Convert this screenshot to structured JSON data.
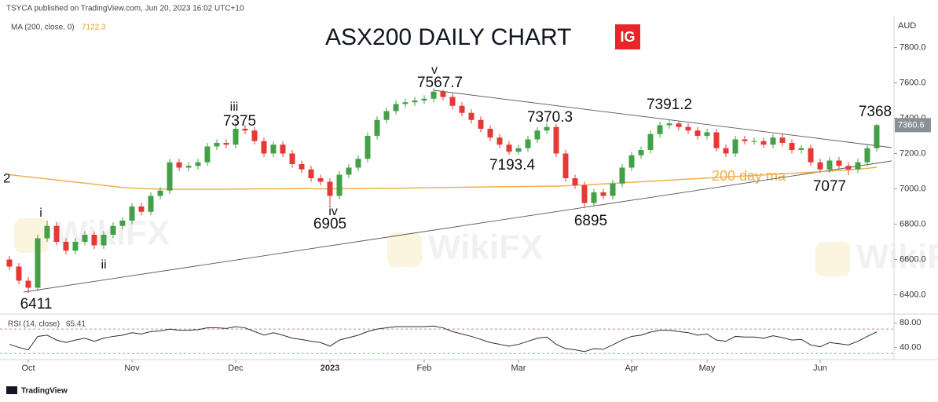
{
  "header": "TSYCA published on TradingView.com, Jun 20, 2023 16:02 UTC+10",
  "footer": "TradingView",
  "chart_data": {
    "type": "candlestick",
    "title": "ASX200 DAILY CHART",
    "logo": "IG",
    "currency": "AUD",
    "edge_label": "2",
    "watermark": "WikiFX",
    "up_color": "#43a047",
    "down_color": "#e53935",
    "categories": [
      null,
      null,
      "Oct",
      null,
      null,
      null,
      null,
      null,
      null,
      null,
      null,
      null,
      null,
      "Nov",
      null,
      null,
      null,
      null,
      null,
      null,
      null,
      null,
      null,
      null,
      "Dec",
      null,
      null,
      null,
      null,
      null,
      null,
      null,
      null,
      null,
      "2023",
      null,
      null,
      null,
      null,
      null,
      null,
      null,
      null,
      null,
      "Feb",
      null,
      null,
      null,
      null,
      null,
      null,
      null,
      null,
      null,
      "Mar",
      null,
      null,
      null,
      null,
      null,
      null,
      null,
      null,
      null,
      null,
      null,
      "Apr",
      null,
      null,
      null,
      null,
      null,
      null,
      null,
      "May",
      null,
      null,
      null,
      null,
      null,
      null,
      null,
      null,
      null,
      null,
      null,
      "Jun",
      null,
      null,
      null,
      null,
      null,
      null
    ],
    "open": [
      6600,
      6560,
      6480,
      6440,
      6720,
      6790,
      6700,
      6650,
      6700,
      6740,
      6680,
      6740,
      6790,
      6820,
      6900,
      6870,
      6960,
      6990,
      7150,
      7120,
      7130,
      7150,
      7240,
      7260,
      7250,
      7340,
      7330,
      7270,
      7200,
      7250,
      7200,
      7140,
      7110,
      7060,
      7040,
      6960,
      7080,
      7120,
      7170,
      7300,
      7390,
      7440,
      7480,
      7490,
      7500,
      7510,
      7550,
      7520,
      7470,
      7430,
      7390,
      7340,
      7290,
      7250,
      7210,
      7230,
      7280,
      7330,
      7350,
      7200,
      7060,
      7020,
      6920,
      6980,
      6960,
      7030,
      7120,
      7190,
      7220,
      7310,
      7360,
      7370,
      7350,
      7330,
      7300,
      7320,
      7230,
      7200,
      7280,
      7270,
      7270,
      7250,
      7290,
      7260,
      7220,
      7230,
      7150,
      7110,
      7160,
      7130,
      7110,
      7150,
      7230
    ],
    "high": [
      6620,
      6580,
      6500,
      6740,
      6820,
      6810,
      6720,
      6720,
      6760,
      6760,
      6760,
      6810,
      6840,
      6920,
      6920,
      6980,
      7010,
      7170,
      7170,
      7150,
      7170,
      7260,
      7280,
      7280,
      7375,
      7360,
      7350,
      7290,
      7270,
      7270,
      7220,
      7160,
      7130,
      7080,
      7060,
      7100,
      7140,
      7190,
      7320,
      7410,
      7460,
      7500,
      7510,
      7520,
      7530,
      7567.7,
      7560,
      7540,
      7490,
      7450,
      7410,
      7360,
      7310,
      7270,
      7250,
      7300,
      7350,
      7370.3,
      7365,
      7220,
      7080,
      7040,
      7000,
      7000,
      7050,
      7140,
      7210,
      7240,
      7330,
      7380,
      7391.2,
      7385,
      7370,
      7350,
      7340,
      7340,
      7250,
      7300,
      7300,
      7290,
      7290,
      7310,
      7310,
      7280,
      7250,
      7250,
      7170,
      7180,
      7180,
      7150,
      7170,
      7250,
      7368
    ],
    "low": [
      6540,
      6460,
      6411,
      6420,
      6700,
      6680,
      6630,
      6630,
      6680,
      6660,
      6660,
      6720,
      6770,
      6800,
      6850,
      6850,
      6940,
      6970,
      7100,
      7100,
      7110,
      7130,
      7220,
      7230,
      7230,
      7310,
      7250,
      7180,
      7180,
      7180,
      7120,
      7090,
      7040,
      7020,
      6905,
      6940,
      7060,
      7100,
      7150,
      7280,
      7370,
      7420,
      7460,
      7470,
      7480,
      7490,
      7500,
      7450,
      7410,
      7370,
      7320,
      7270,
      7230,
      7193.4,
      7195,
      7210,
      7260,
      7310,
      7180,
      7040,
      7000,
      6895,
      6900,
      6940,
      6940,
      7010,
      7100,
      7170,
      7200,
      7290,
      7340,
      7330,
      7310,
      7280,
      7280,
      7210,
      7180,
      7180,
      7250,
      7250,
      7230,
      7230,
      7240,
      7200,
      7200,
      7130,
      7090,
      7090,
      7110,
      7077,
      7090,
      7130,
      7210
    ],
    "close": [
      6560,
      6480,
      6440,
      6720,
      6790,
      6700,
      6650,
      6700,
      6740,
      6680,
      6740,
      6790,
      6820,
      6900,
      6870,
      6960,
      6990,
      7150,
      7120,
      7130,
      7150,
      7240,
      7260,
      7250,
      7340,
      7330,
      7270,
      7200,
      7250,
      7200,
      7140,
      7110,
      7060,
      7040,
      6960,
      7080,
      7120,
      7170,
      7300,
      7390,
      7440,
      7480,
      7490,
      7500,
      7510,
      7550,
      7520,
      7470,
      7430,
      7390,
      7340,
      7290,
      7250,
      7210,
      7230,
      7280,
      7330,
      7350,
      7200,
      7060,
      7020,
      6920,
      6980,
      6960,
      7030,
      7120,
      7190,
      7220,
      7310,
      7360,
      7370,
      7350,
      7330,
      7300,
      7320,
      7230,
      7200,
      7280,
      7270,
      7270,
      7250,
      7290,
      7260,
      7220,
      7230,
      7150,
      7110,
      7160,
      7130,
      7110,
      7150,
      7230,
      7360.6
    ],
    "ylim": [
      6300,
      7980
    ],
    "yticks": [
      {
        "value": 6400,
        "label": "6400.0"
      },
      {
        "value": 6600,
        "label": "6600.0"
      },
      {
        "value": 6800,
        "label": "6800.0"
      },
      {
        "value": 7000,
        "label": "7000.0"
      },
      {
        "value": 7200,
        "label": "7200.0"
      },
      {
        "value": 7400,
        "label": "7400.0"
      },
      {
        "value": 7600,
        "label": "7600.0"
      },
      {
        "value": 7800,
        "label": "7800.0"
      }
    ],
    "ma": {
      "name": "MA (200, close, 0)",
      "color": "#eeb04e",
      "annotation": "200 day ma",
      "values": [
        7080,
        7074,
        7068,
        7062,
        7056,
        7050,
        7044,
        7038,
        7032,
        7026,
        7020,
        7014,
        7008,
        7004,
        7002,
        7000,
        6999,
        6999,
        6998,
        6998,
        6998,
        6998,
        6998,
        6998,
        6999,
        6999,
        7000,
        7000,
        7000,
        7000,
        7001,
        7001,
        7001,
        7000,
        7000,
        7000,
        7001,
        7001,
        7002,
        7002,
        7003,
        7003,
        7004,
        7005,
        7006,
        7006,
        7007,
        7008,
        7009,
        7010,
        7010,
        7011,
        7012,
        7013,
        7013,
        7014,
        7014,
        7015,
        7015,
        7017,
        7020,
        7022,
        7025,
        7028,
        7031,
        7034,
        7037,
        7040,
        7043,
        7046,
        7049,
        7052,
        7055,
        7058,
        7061,
        7064,
        7067,
        7070,
        7073,
        7076,
        7079,
        7082,
        7085,
        7088,
        7091,
        7094,
        7097,
        7100,
        7104,
        7108,
        7112,
        7116,
        7122.3
      ]
    },
    "rsi": {
      "name": "RSI (14, close)",
      "color": "#2a2e39",
      "ylim": [
        20,
        92
      ],
      "yticks": [
        {
          "value": 80,
          "label": "80.00"
        },
        {
          "value": 40,
          "label": "40.00"
        }
      ],
      "bands": [
        70,
        30
      ],
      "values": [
        45,
        40,
        36,
        58,
        60,
        52,
        48,
        52,
        55,
        50,
        55,
        58,
        60,
        64,
        62,
        66,
        67,
        70,
        68,
        68,
        69,
        72,
        72,
        71,
        74,
        72,
        66,
        60,
        64,
        60,
        55,
        53,
        50,
        48,
        42,
        52,
        56,
        60,
        66,
        70,
        72,
        74,
        74,
        74,
        74,
        75,
        72,
        66,
        62,
        58,
        53,
        48,
        45,
        42,
        45,
        50,
        55,
        57,
        45,
        38,
        36,
        33,
        38,
        37,
        44,
        52,
        58,
        60,
        65,
        68,
        68,
        66,
        64,
        60,
        62,
        52,
        50,
        58,
        57,
        57,
        55,
        59,
        56,
        52,
        53,
        44,
        41,
        48,
        46,
        44,
        50,
        58,
        65.41
      ]
    },
    "waves": [
      "i",
      "ii",
      "iii",
      "iv",
      "v"
    ]
  }
}
